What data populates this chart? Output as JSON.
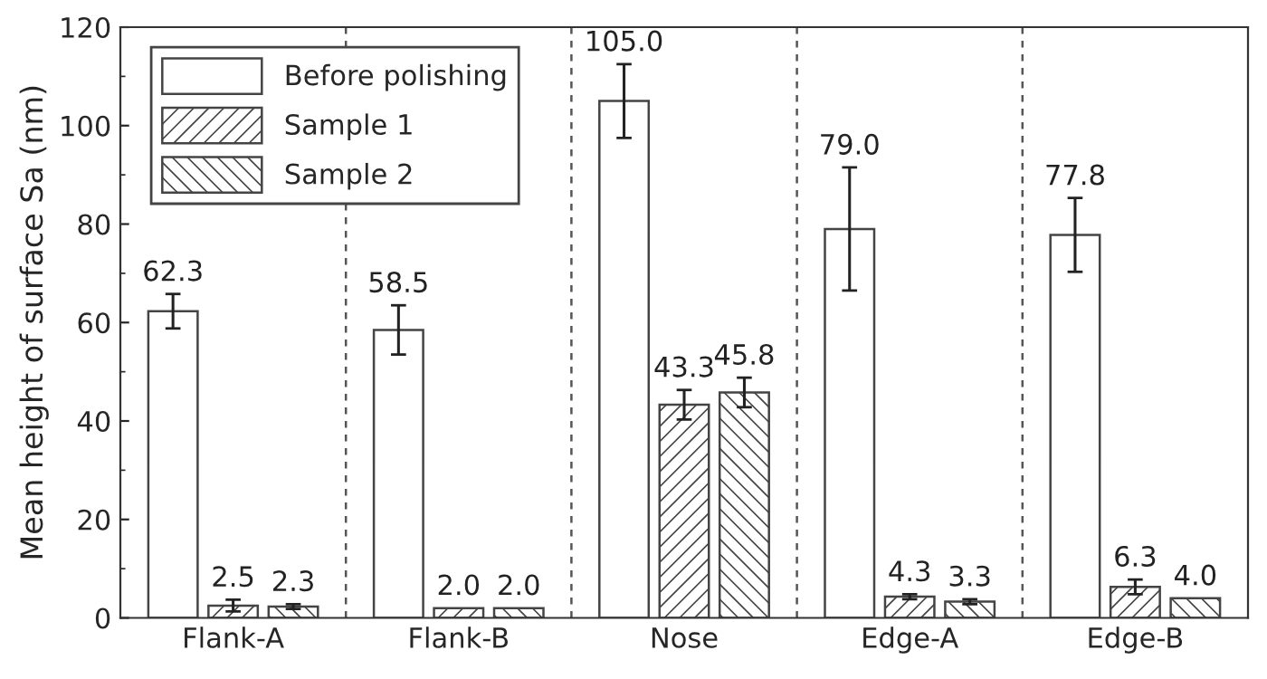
{
  "chart_data": {
    "type": "bar",
    "ylabel": "Mean height of surface Sa (nm)",
    "categories": [
      "Flank-A",
      "Flank-B",
      "Nose",
      "Edge-A",
      "Edge-B"
    ],
    "series": [
      {
        "name": "Before polishing",
        "color": "#ffffff",
        "values": [
          62.3,
          58.5,
          105.0,
          79.0,
          77.8
        ],
        "errors": [
          3.5,
          5,
          7.5,
          12.5,
          7.5
        ],
        "value_labels": [
          "62.3",
          "58.5",
          "105.0",
          "79.0",
          "77.8"
        ]
      },
      {
        "name": "Sample 1",
        "color": "#444444",
        "values": [
          2.5,
          2.0,
          43.3,
          4.3,
          6.3
        ],
        "errors": [
          1.2,
          null,
          3,
          0.5,
          1.5
        ],
        "value_labels": [
          "2.5",
          "2.0",
          "43.3",
          "4.3",
          "6.3"
        ]
      },
      {
        "name": "Sample 2",
        "color": "#444444",
        "values": [
          2.3,
          2.0,
          45.8,
          3.3,
          4.0
        ],
        "errors": [
          0.5,
          null,
          3,
          0.5,
          null
        ],
        "value_labels": [
          "2.3",
          "2.0",
          "45.8",
          "3.3",
          "4.0"
        ]
      }
    ],
    "ylim": [
      0,
      120
    ],
    "yticks": [
      0,
      20,
      40,
      60,
      80,
      100,
      120
    ],
    "legend": "top left",
    "grid": false
  }
}
